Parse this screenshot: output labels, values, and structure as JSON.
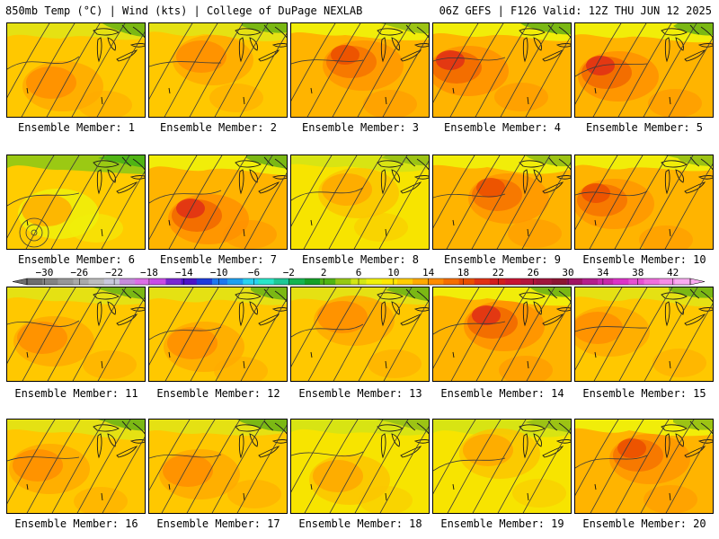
{
  "header": {
    "left": "850mb Temp (°C) | Wind (kts) | College of DuPage NEXLAB",
    "right": "06Z GEFS | F126 Valid: 12Z THU JUN 12 2025"
  },
  "panels": [
    {
      "label": "Ensemble Member: 1",
      "hot": "warm"
    },
    {
      "label": "Ensemble Member: 2",
      "hot": "warm"
    },
    {
      "label": "Ensemble Member: 3",
      "hot": "hot"
    },
    {
      "label": "Ensemble Member: 4",
      "hot": "veryhot"
    },
    {
      "label": "Ensemble Member: 5",
      "hot": "veryhot"
    },
    {
      "label": "Ensemble Member: 6",
      "hot": "cool"
    },
    {
      "label": "Ensemble Member: 7",
      "hot": "veryhot"
    },
    {
      "label": "Ensemble Member: 8",
      "hot": "mild"
    },
    {
      "label": "Ensemble Member: 9",
      "hot": "hot"
    },
    {
      "label": "Ensemble Member: 10",
      "hot": "hot"
    },
    {
      "label": "Ensemble Member: 11",
      "hot": "warm"
    },
    {
      "label": "Ensemble Member: 12",
      "hot": "warm"
    },
    {
      "label": "Ensemble Member: 13",
      "hot": "warm"
    },
    {
      "label": "Ensemble Member: 14",
      "hot": "veryhot"
    },
    {
      "label": "Ensemble Member: 15",
      "hot": "warm"
    },
    {
      "label": "Ensemble Member: 16",
      "hot": "warm"
    },
    {
      "label": "Ensemble Member: 17",
      "hot": "warm"
    },
    {
      "label": "Ensemble Member: 18",
      "hot": "mild"
    },
    {
      "label": "Ensemble Member: 19",
      "hot": "mild"
    },
    {
      "label": "Ensemble Member: 20",
      "hot": "hot"
    }
  ],
  "colorbar": {
    "labels": [
      "−30",
      "−26",
      "−22",
      "−18",
      "−14",
      "−10",
      "−6",
      "−2",
      "2",
      "6",
      "10",
      "14",
      "18",
      "22",
      "26",
      "30",
      "34",
      "38",
      "42"
    ],
    "colors": [
      "#6e6e6e",
      "#838383",
      "#979797",
      "#a9a9a9",
      "#bcbcbc",
      "#c8c8dc",
      "#c68cdc",
      "#dc6ee6",
      "#c84be6",
      "#7a28d2",
      "#4b14c8",
      "#1e3cdc",
      "#1e78f0",
      "#1ea0f0",
      "#28d2f0",
      "#28e6c8",
      "#1ec896",
      "#14b450",
      "#14a028",
      "#50b414",
      "#96c814",
      "#d2e614",
      "#f0f00a",
      "#ffe600",
      "#ffcc00",
      "#ffaa00",
      "#ff8c00",
      "#f56e00",
      "#eb5000",
      "#e13214",
      "#d21e1e",
      "#c81432",
      "#b4143c",
      "#a0143c",
      "#8c1432",
      "#a01464",
      "#b41e8c",
      "#c828aa",
      "#dc32c8",
      "#e650d2",
      "#f06edc",
      "#f58ce6",
      "#faaaf0"
    ],
    "vmin": -32,
    "vmax": 44,
    "step": 2
  }
}
